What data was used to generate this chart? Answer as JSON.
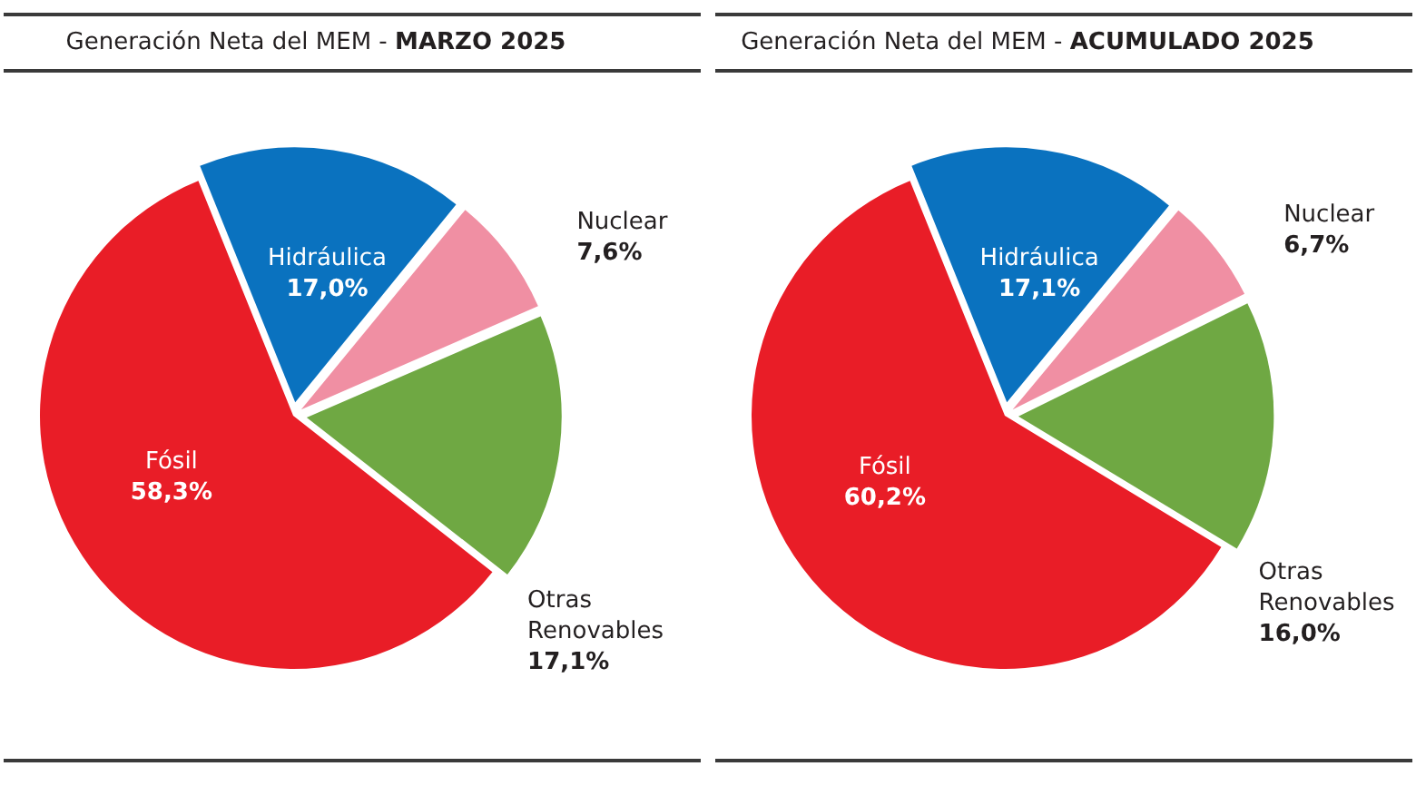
{
  "chart_data": [
    {
      "type": "pie",
      "title": "Generación Neta del MEM - MARZO 2025",
      "categories": [
        "Hidráulica",
        "Nuclear",
        "Otras Renovables",
        "Fósil"
      ],
      "values": [
        17.0,
        7.6,
        17.1,
        58.3
      ],
      "colors": [
        "#0a72bf",
        "#f08fa3",
        "#6fa843",
        "#e91d27"
      ],
      "value_labels": [
        "17,0%",
        "7,6%",
        "17,1%",
        "58,3%"
      ]
    },
    {
      "type": "pie",
      "title": "Generación Neta del MEM - ACUMULADO 2025",
      "categories": [
        "Hidráulica",
        "Nuclear",
        "Otras Renovables",
        "Fósil"
      ],
      "values": [
        17.1,
        6.7,
        16.0,
        60.2
      ],
      "colors": [
        "#0a72bf",
        "#f08fa3",
        "#6fa843",
        "#e91d27"
      ],
      "value_labels": [
        "17,1%",
        "6,7%",
        "16,0%",
        "60,2%"
      ]
    }
  ]
}
